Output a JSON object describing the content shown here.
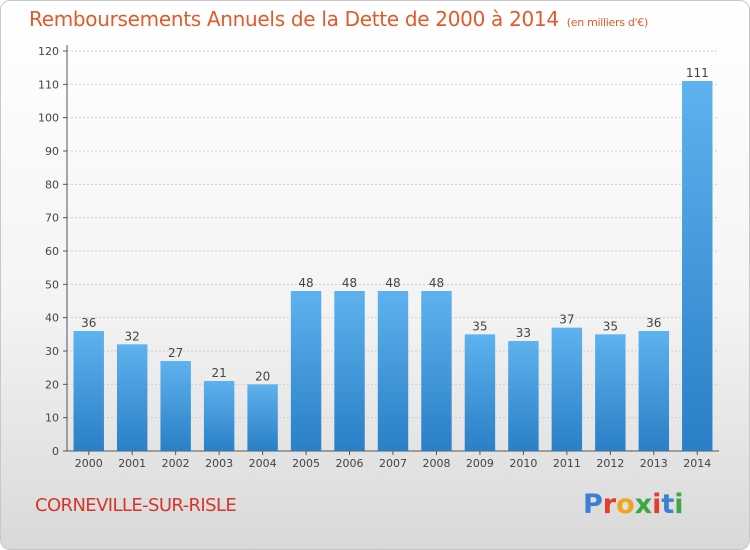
{
  "header": {
    "title": "Remboursements Annuels de la Dette de 2000 à 2014",
    "unit": "(en milliers d'€)"
  },
  "footer": {
    "commune": "CORNEVILLE-SUR-RISLE",
    "logo_letters": [
      "P",
      "r",
      "o",
      "x",
      "i",
      "t",
      "i"
    ],
    "logo_colors": [
      "#3b7fd4",
      "#e43c2f",
      "#f2a31b",
      "#3aa845",
      "#e43c2f",
      "#3b7fd4",
      "#3aa845"
    ]
  },
  "colors": {
    "bar_light": "#5eb2ee",
    "bar_dark": "#2a7fc6",
    "title": "#e05a2a",
    "commune": "#d8342a"
  },
  "chart_data": {
    "type": "bar",
    "categories": [
      "2000",
      "2001",
      "2002",
      "2003",
      "2004",
      "2005",
      "2006",
      "2007",
      "2008",
      "2009",
      "2010",
      "2011",
      "2012",
      "2013",
      "2014"
    ],
    "values": [
      36,
      32,
      27,
      21,
      20,
      48,
      48,
      48,
      48,
      35,
      33,
      37,
      35,
      36,
      111
    ],
    "ylim": [
      0,
      120
    ],
    "yticks": [
      0,
      10,
      20,
      30,
      40,
      50,
      60,
      70,
      80,
      90,
      100,
      110,
      120
    ],
    "grid": true,
    "xlabel": "",
    "ylabel": ""
  }
}
